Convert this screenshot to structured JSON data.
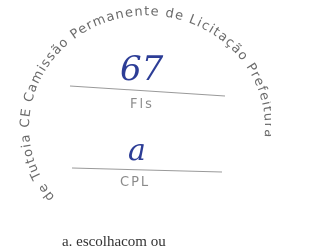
{
  "stamp": {
    "ring_text": "de Tutoia CE Camissão Permanente de Licitação Prefeitura",
    "page_number": "67",
    "page_label": "Fls",
    "initial": "a",
    "office": "CPL"
  },
  "footer": {
    "text": "a. escolhacom ou"
  }
}
